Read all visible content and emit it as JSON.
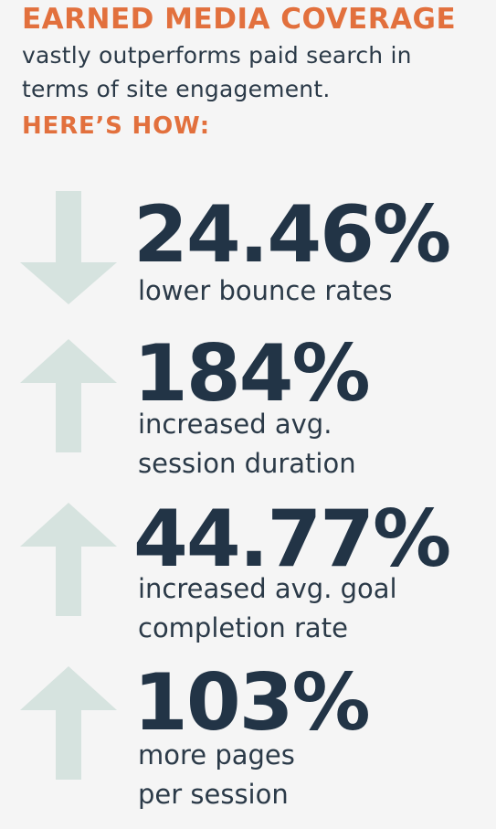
{
  "header": {
    "headline": "EARNED MEDIA COVERAGE",
    "subline_1": "vastly outperforms paid search in",
    "subline_2": "terms of site engagement.",
    "how": "HERE’S HOW:"
  },
  "stats": [
    {
      "direction": "down",
      "value": "24.46%",
      "description": "lower bounce rates"
    },
    {
      "direction": "up",
      "value": "184%",
      "description": "increased avg.\nsession duration"
    },
    {
      "direction": "up",
      "value": "44.77%",
      "description": "increased avg. goal\ncompletion rate"
    },
    {
      "direction": "up",
      "value": "103%",
      "description": "more pages\nper session"
    }
  ],
  "colors": {
    "accent": "#e2703d",
    "stat_text": "#223446",
    "arrow": "#d6e3df",
    "background": "#f5f5f5"
  },
  "icons": {
    "down": "down-arrow-icon",
    "up": "up-arrow-icon"
  }
}
